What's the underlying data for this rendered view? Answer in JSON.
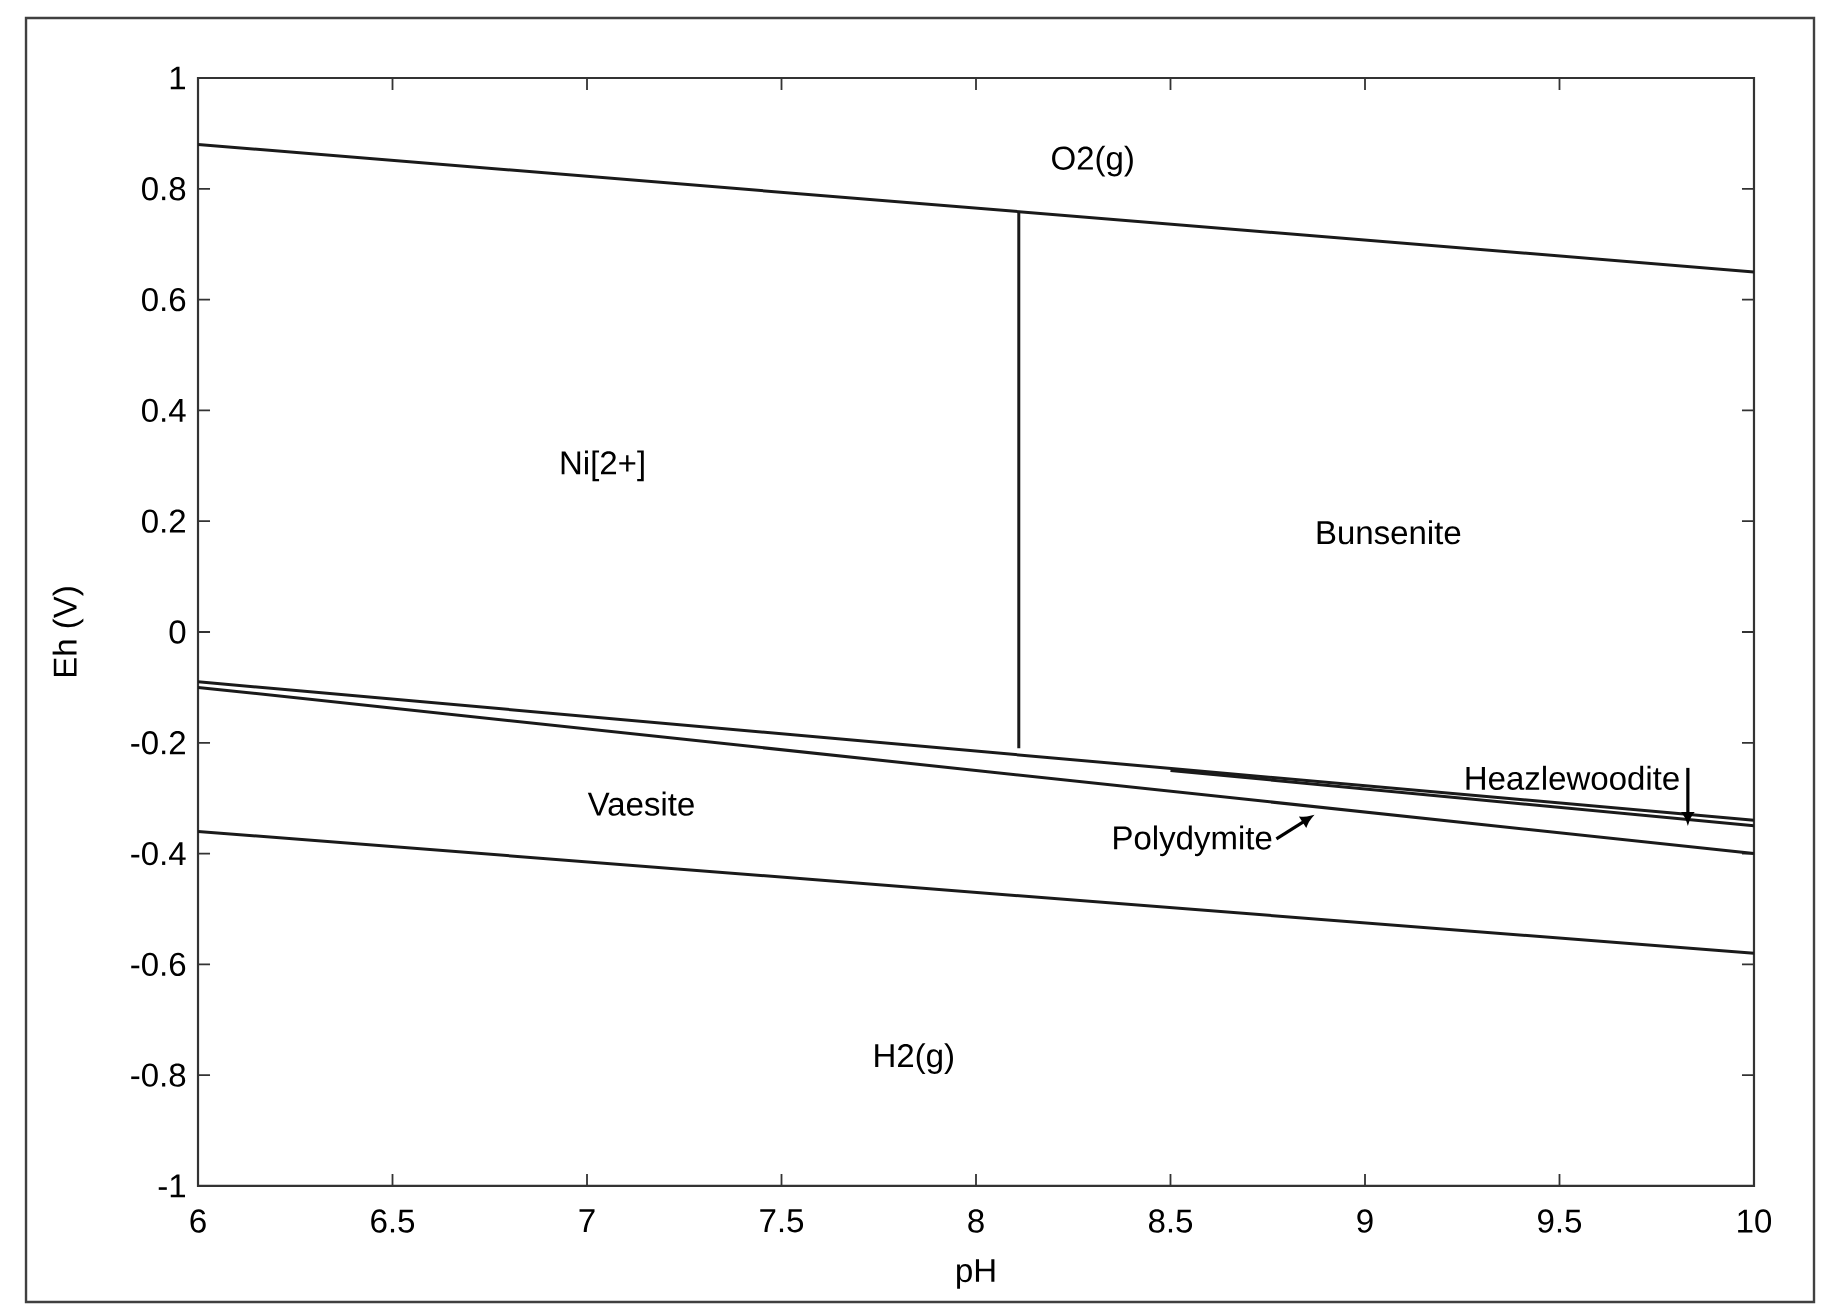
{
  "chart_data": {
    "type": "line",
    "xlabel": "pH",
    "ylabel": "Eh (V)",
    "xlim": [
      6,
      10
    ],
    "ylim": [
      -1,
      1
    ],
    "xticks": [
      6,
      6.5,
      7,
      7.5,
      8,
      8.5,
      9,
      9.5,
      10
    ],
    "yticks": [
      -1,
      -0.8,
      -0.6,
      -0.4,
      -0.2,
      0,
      0.2,
      0.4,
      0.6,
      0.8,
      1
    ],
    "marker": "none",
    "line_style": "solid",
    "series": [
      {
        "color": "#1a1a1a",
        "x": [
          6,
          10
        ],
        "values": [
          0.88,
          0.65
        ]
      },
      {
        "color": "#1a1a1a",
        "x": [
          8.11,
          8.11
        ],
        "values": [
          0.76,
          -0.21
        ]
      },
      {
        "color": "#1a1a1a",
        "x": [
          6,
          10
        ],
        "values": [
          -0.09,
          -0.34
        ]
      },
      {
        "color": "#1a1a1a",
        "x": [
          8.5,
          10
        ],
        "values": [
          -0.25,
          -0.35
        ]
      },
      {
        "color": "#1a1a1a",
        "x": [
          6,
          10
        ],
        "values": [
          -0.1,
          -0.4
        ]
      },
      {
        "color": "#1a1a1a",
        "x": [
          6,
          10
        ],
        "values": [
          -0.36,
          -0.58
        ]
      }
    ],
    "annotations": [
      "O2(g)",
      "Ni[2+]",
      "Bunsenite",
      "Vaesite",
      "H2(g)",
      {
        "text": "Polydymite",
        "x": 8.87,
        "y": -0.33
      },
      {
        "text": "Heazlewoodite",
        "x": 9.83,
        "y": -0.35
      }
    ]
  }
}
